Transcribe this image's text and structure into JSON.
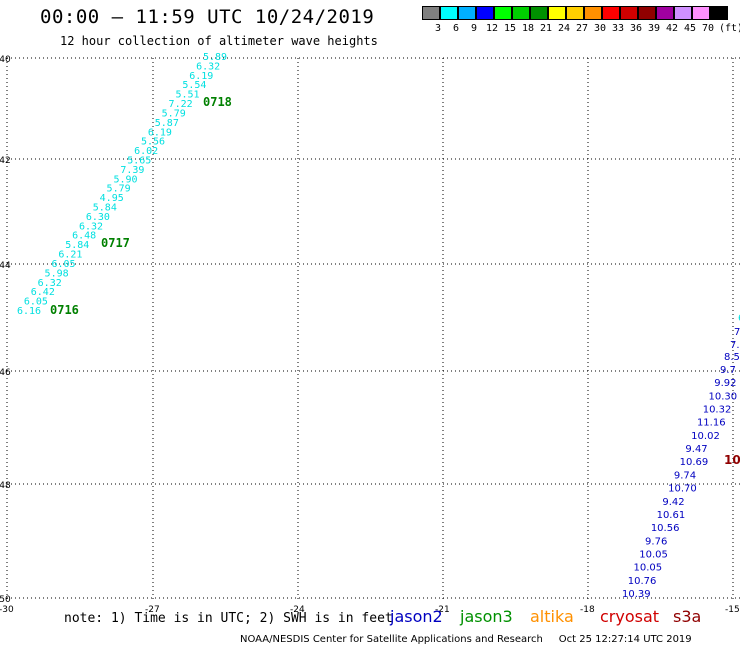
{
  "header": {
    "title": "00:00 – 11:59 UTC 10/24/2019",
    "subtitle": "12 hour collection of altimeter wave heights"
  },
  "legend": {
    "unit": "(ft)",
    "bins": [
      {
        "label": "3",
        "color": "#808080"
      },
      {
        "label": "6",
        "color": "#00ffff"
      },
      {
        "label": "9",
        "color": "#00b0ff"
      },
      {
        "label": "12",
        "color": "#0000ff"
      },
      {
        "label": "15",
        "color": "#00ff00"
      },
      {
        "label": "18",
        "color": "#00d000"
      },
      {
        "label": "21",
        "color": "#009000"
      },
      {
        "label": "24",
        "color": "#ffff00"
      },
      {
        "label": "27",
        "color": "#ffd000"
      },
      {
        "label": "30",
        "color": "#ff9000"
      },
      {
        "label": "33",
        "color": "#ff0000"
      },
      {
        "label": "36",
        "color": "#d00000"
      },
      {
        "label": "39",
        "color": "#900000"
      },
      {
        "label": "42",
        "color": "#a000a0"
      },
      {
        "label": "45",
        "color": "#d090ff"
      },
      {
        "label": "70",
        "color": "#ff90ff"
      },
      {
        "label": "",
        "color": "#000000"
      }
    ]
  },
  "axes": {
    "lat_labels": [
      "-40",
      "-42",
      "-44",
      "-46",
      "-48",
      "-50"
    ],
    "lon_labels": [
      "-30",
      "-27",
      "-24",
      "-21",
      "-18",
      "-15"
    ]
  },
  "tracks": {
    "jason3": {
      "color": "#00e0e0",
      "times": [
        {
          "text": "0718",
          "color": "#008000"
        },
        {
          "text": "0717",
          "color": "#008000"
        },
        {
          "text": "0716",
          "color": "#008000"
        }
      ],
      "values": [
        "5.89",
        "6.32",
        "6.19",
        "5.54",
        "5.51",
        "7.22",
        "5.79",
        "5.87",
        "6.19",
        "5.56",
        "6.02",
        "5.65",
        "7.39",
        "5.90",
        "5.79",
        "4.95",
        "5.84",
        "6.30",
        "6.32",
        "6.48",
        "5.84",
        "6.21",
        "6.05",
        "5.98",
        "6.32",
        "6.42",
        "6.05",
        "6.16"
      ]
    },
    "jason2": {
      "color": "#0000c0",
      "values": [
        "9.7",
        "9.92",
        "10.30",
        "10.32",
        "11.16",
        "10.02",
        "9.47",
        "10.69",
        "9.74",
        "10.70",
        "9.42",
        "10.61",
        "10.56",
        "9.76",
        "10.05",
        "10.05",
        "10.76",
        "10.39"
      ],
      "edge": [
        "6",
        "7",
        "7.",
        "8.5"
      ]
    },
    "cryosat": {
      "color": "#900000",
      "partial": "10"
    }
  },
  "footer": {
    "note": "note: 1) Time is in UTC; 2) SWH is in feet",
    "satellites": [
      {
        "name": "jason2",
        "color": "#0000c0"
      },
      {
        "name": "jason3",
        "color": "#009000"
      },
      {
        "name": "altika",
        "color": "#ff9000"
      },
      {
        "name": "cryosat",
        "color": "#d00000"
      },
      {
        "name": "s3a",
        "color": "#900000"
      }
    ],
    "credit": "NOAA/NESDIS Center for Satellite Applications and Research     Oct 25 12:27:14 UTC 2019"
  }
}
